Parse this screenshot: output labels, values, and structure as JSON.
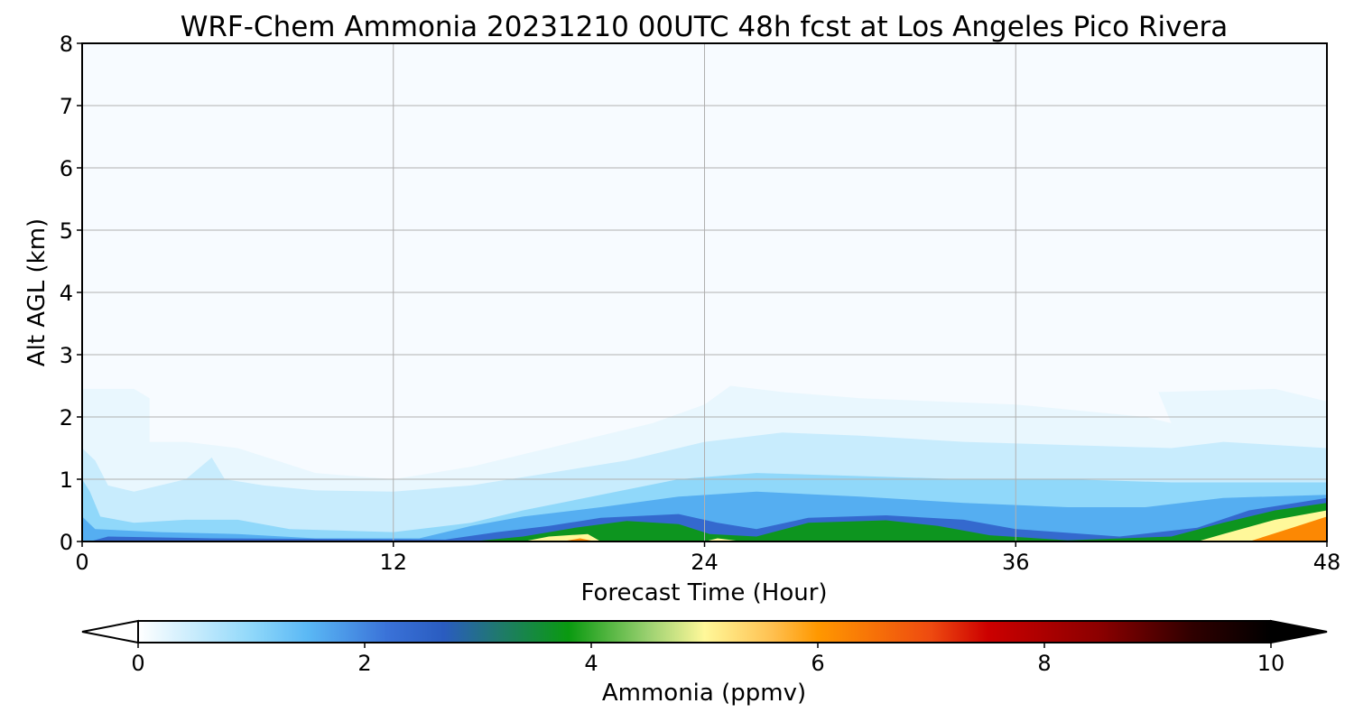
{
  "chart_data": {
    "type": "heatmap",
    "title": "WRF-Chem Ammonia  20231210 00UTC 48h fcst at Los Angeles Pico Rivera",
    "xlabel": "Forecast Time (Hour)",
    "ylabel": "Alt AGL (km)",
    "xlim": [
      0,
      48
    ],
    "ylim": [
      0,
      8
    ],
    "x_ticks": [
      "0",
      "12",
      "24",
      "36",
      "48"
    ],
    "y_ticks": [
      "0",
      "1",
      "2",
      "3",
      "4",
      "5",
      "6",
      "7",
      "8"
    ],
    "grid": true,
    "colorbar": {
      "label": "Ammonia  (ppmv)",
      "min": 0,
      "max": 10,
      "extend": "both",
      "ticks": [
        "0",
        "2",
        "4",
        "6",
        "8",
        "10"
      ],
      "stops": [
        {
          "v": 0.0,
          "c": "#ffffff"
        },
        {
          "v": 1.0,
          "c": "#90d8fa"
        },
        {
          "v": 1.5,
          "c": "#5ab8f5"
        },
        {
          "v": 2.2,
          "c": "#3a72d8"
        },
        {
          "v": 2.7,
          "c": "#2a5cc0"
        },
        {
          "v": 3.2,
          "c": "#1f7a6a"
        },
        {
          "v": 3.8,
          "c": "#0a9a10"
        },
        {
          "v": 4.5,
          "c": "#9ad070"
        },
        {
          "v": 5.0,
          "c": "#fff89a"
        },
        {
          "v": 5.6,
          "c": "#ffc050"
        },
        {
          "v": 6.0,
          "c": "#ff9800"
        },
        {
          "v": 7.0,
          "c": "#ee4a10"
        },
        {
          "v": 7.5,
          "c": "#cc0000"
        },
        {
          "v": 8.5,
          "c": "#8a0000"
        },
        {
          "v": 9.3,
          "c": "#300000"
        },
        {
          "v": 10.0,
          "c": "#000000"
        }
      ]
    },
    "contours": [
      {
        "level": 0.2,
        "points": [
          [
            0,
            2.45
          ],
          [
            2,
            2.45
          ],
          [
            2.6,
            2.3
          ],
          [
            2.6,
            1.6
          ],
          [
            4,
            1.6
          ],
          [
            6,
            1.5
          ],
          [
            9,
            1.1
          ],
          [
            12,
            1.0
          ],
          [
            15,
            1.2
          ],
          [
            18,
            1.5
          ],
          [
            22,
            1.9
          ],
          [
            24,
            2.2
          ],
          [
            25,
            2.5
          ],
          [
            27,
            2.4
          ],
          [
            30,
            2.3
          ],
          [
            36,
            2.2
          ],
          [
            41,
            2.0
          ],
          [
            42,
            1.9
          ],
          [
            41.5,
            2.4
          ],
          [
            46,
            2.45
          ],
          [
            48,
            2.25
          ],
          [
            48,
            0
          ],
          [
            0,
            0
          ]
        ]
      },
      {
        "level": 0.5,
        "points": [
          [
            0,
            1.5
          ],
          [
            0.5,
            1.3
          ],
          [
            1,
            0.9
          ],
          [
            2,
            0.8
          ],
          [
            4,
            1.0
          ],
          [
            5,
            1.35
          ],
          [
            5.5,
            1.0
          ],
          [
            7,
            0.9
          ],
          [
            9,
            0.82
          ],
          [
            12,
            0.8
          ],
          [
            15,
            0.9
          ],
          [
            18,
            1.1
          ],
          [
            21,
            1.3
          ],
          [
            24,
            1.6
          ],
          [
            27,
            1.75
          ],
          [
            30,
            1.7
          ],
          [
            34,
            1.6
          ],
          [
            38,
            1.55
          ],
          [
            42,
            1.5
          ],
          [
            44,
            1.6
          ],
          [
            48,
            1.5
          ],
          [
            48,
            0
          ],
          [
            0,
            0
          ]
        ]
      },
      {
        "level": 1.0,
        "points": [
          [
            0,
            1.0
          ],
          [
            0.3,
            0.8
          ],
          [
            0.7,
            0.4
          ],
          [
            2,
            0.3
          ],
          [
            4,
            0.35
          ],
          [
            6,
            0.35
          ],
          [
            8,
            0.2
          ],
          [
            12,
            0.15
          ],
          [
            15,
            0.3
          ],
          [
            17,
            0.5
          ],
          [
            20,
            0.75
          ],
          [
            23,
            1.0
          ],
          [
            26,
            1.1
          ],
          [
            30,
            1.05
          ],
          [
            34,
            1.0
          ],
          [
            38,
            1.0
          ],
          [
            42,
            0.95
          ],
          [
            45,
            0.95
          ],
          [
            48,
            0.95
          ],
          [
            48,
            0
          ],
          [
            0,
            0
          ]
        ]
      },
      {
        "level": 1.6,
        "points": [
          [
            0,
            0.4
          ],
          [
            0.5,
            0.2
          ],
          [
            3,
            0.15
          ],
          [
            6,
            0.12
          ],
          [
            9,
            0.05
          ],
          [
            13,
            0.05
          ],
          [
            15,
            0.25
          ],
          [
            17,
            0.4
          ],
          [
            20,
            0.55
          ],
          [
            23,
            0.72
          ],
          [
            26,
            0.8
          ],
          [
            30,
            0.72
          ],
          [
            34,
            0.62
          ],
          [
            38,
            0.55
          ],
          [
            41,
            0.55
          ],
          [
            44,
            0.7
          ],
          [
            48,
            0.75
          ],
          [
            48,
            0
          ],
          [
            0,
            0
          ]
        ]
      },
      {
        "level": 2.4,
        "points": [
          [
            0.3,
            0
          ],
          [
            1,
            0.08
          ],
          [
            5,
            0.05
          ],
          [
            14,
            0.03
          ],
          [
            16,
            0.15
          ],
          [
            18,
            0.25
          ],
          [
            20,
            0.38
          ],
          [
            23,
            0.44
          ],
          [
            24.5,
            0.3
          ],
          [
            26,
            0.2
          ],
          [
            28,
            0.38
          ],
          [
            31,
            0.42
          ],
          [
            34,
            0.35
          ],
          [
            36,
            0.2
          ],
          [
            40,
            0.08
          ],
          [
            43,
            0.22
          ],
          [
            45,
            0.5
          ],
          [
            48,
            0.7
          ],
          [
            48,
            0
          ]
        ]
      },
      {
        "level": 3.7,
        "points": [
          [
            15,
            0
          ],
          [
            17,
            0.08
          ],
          [
            19,
            0.22
          ],
          [
            21,
            0.33
          ],
          [
            23,
            0.28
          ],
          [
            24.2,
            0.12
          ],
          [
            26,
            0.08
          ],
          [
            28,
            0.3
          ],
          [
            31,
            0.34
          ],
          [
            33,
            0.25
          ],
          [
            35,
            0.1
          ],
          [
            38,
            0.02
          ],
          [
            42,
            0.08
          ],
          [
            44,
            0.3
          ],
          [
            46,
            0.5
          ],
          [
            48,
            0.62
          ],
          [
            48,
            0
          ]
        ]
      },
      {
        "level": 5.0,
        "points": [
          [
            17,
            0
          ],
          [
            18,
            0.08
          ],
          [
            19.5,
            0.12
          ],
          [
            20,
            0
          ],
          [
            24,
            0
          ],
          [
            24.5,
            0.05
          ],
          [
            25.5,
            0
          ],
          [
            43,
            0
          ],
          [
            44,
            0.12
          ],
          [
            46,
            0.35
          ],
          [
            48,
            0.5
          ],
          [
            48,
            0
          ]
        ]
      },
      {
        "level": 6.2,
        "points": [
          [
            18.5,
            0
          ],
          [
            19.2,
            0.05
          ],
          [
            19.8,
            0
          ],
          [
            45,
            0
          ],
          [
            46.5,
            0.2
          ],
          [
            48,
            0.4
          ],
          [
            48,
            0
          ]
        ]
      }
    ]
  }
}
